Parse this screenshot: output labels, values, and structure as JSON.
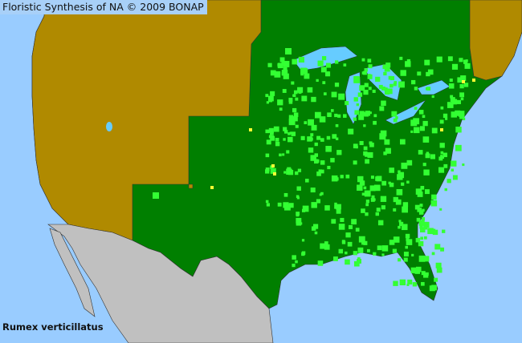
{
  "header": {
    "title": "Floristic Synthesis of NA © 2009 BONAP"
  },
  "map": {
    "species": "Rumex verticillatus",
    "colors": {
      "ocean": "#99ccff",
      "state_present_native": "#007f00",
      "county_present": "#33ff33",
      "state_absent": "#b08a00",
      "county_noted": "#ffff33",
      "outside_region": "#c0c0c0"
    }
  }
}
